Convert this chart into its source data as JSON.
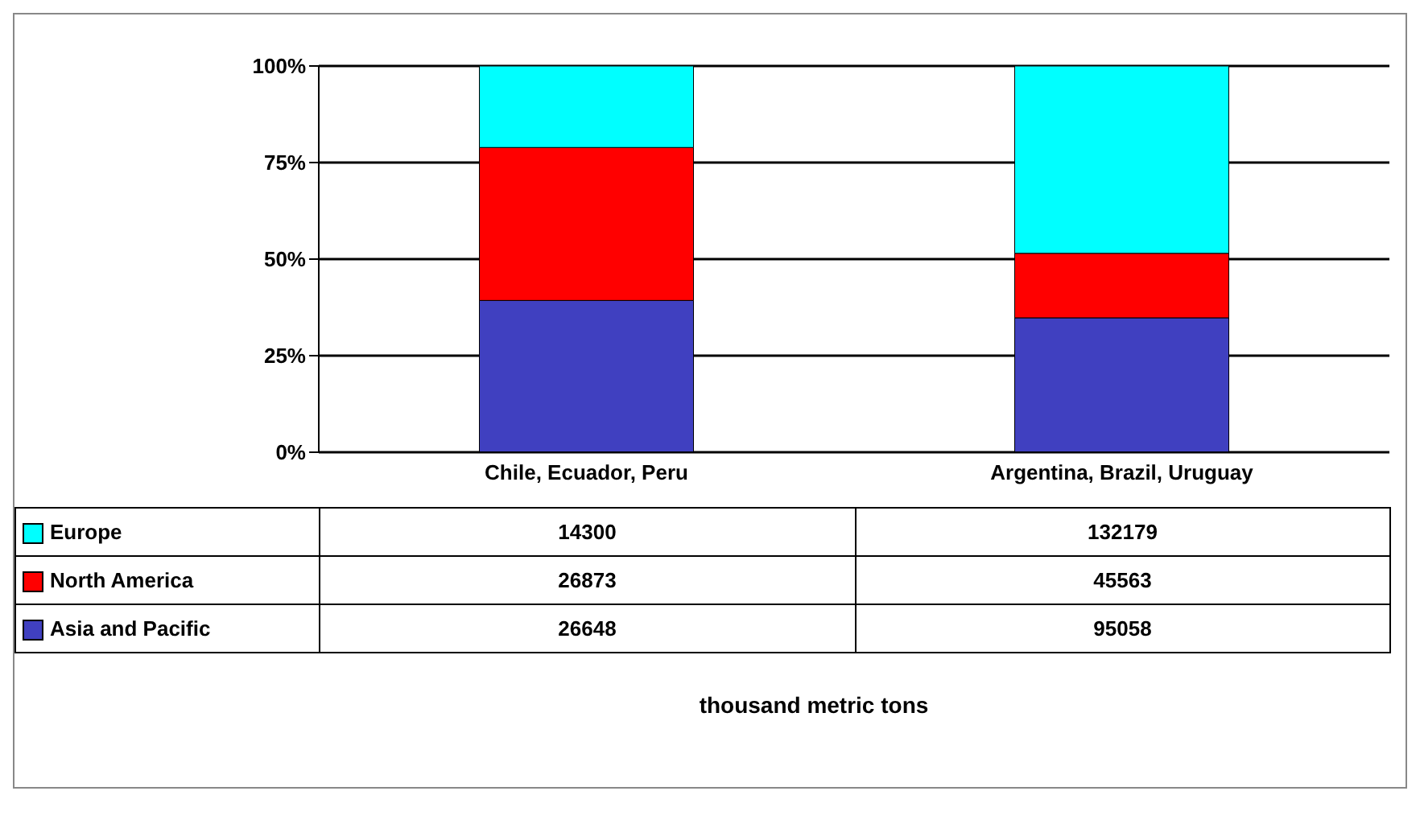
{
  "chart_data": {
    "type": "bar",
    "stacked": true,
    "categories": [
      "Chile, Ecuador, Peru",
      "Argentina, Brazil, Uruguay"
    ],
    "series": [
      {
        "name": "Asia and Pacific",
        "color": "#4040c0",
        "values": [
          39.3,
          34.8
        ]
      },
      {
        "name": "North America",
        "color": "#ff0000",
        "values": [
          39.6,
          16.7
        ]
      },
      {
        "name": "Europe",
        "color": "#00ffff",
        "values": [
          21.1,
          48.5
        ]
      }
    ],
    "ylim": [
      0,
      100
    ],
    "yticks": [
      {
        "value": 0,
        "label": "0%"
      },
      {
        "value": 25,
        "label": "25%"
      },
      {
        "value": 50,
        "label": "50%"
      },
      {
        "value": 75,
        "label": "75%"
      },
      {
        "value": 100,
        "label": "100%"
      }
    ],
    "grid": "y",
    "legend": "bottom left",
    "annotations": [
      "14300",
      "132179",
      "26873",
      "45563",
      "26648",
      "95058",
      "thousand metric tons"
    ]
  }
}
